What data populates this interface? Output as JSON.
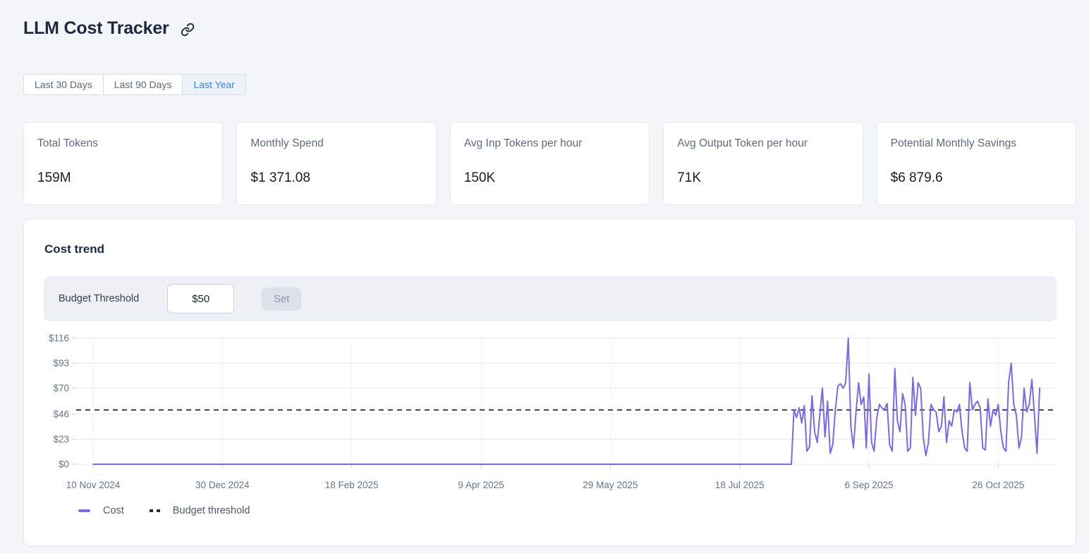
{
  "page": {
    "title": "LLM Cost Tracker"
  },
  "time_range_tabs": [
    {
      "label": "Last 30 Days",
      "selected": false
    },
    {
      "label": "Last 90 Days",
      "selected": false
    },
    {
      "label": "Last Year",
      "selected": true
    }
  ],
  "stat_cards": [
    {
      "label": "Total Tokens",
      "value": "159M"
    },
    {
      "label": "Monthly Spend",
      "value": "$1 371.08"
    },
    {
      "label": "Avg Inp Tokens per hour",
      "value": "150K"
    },
    {
      "label": "Avg Output Token per hour",
      "value": "71K"
    },
    {
      "label": "Potential Monthly Savings",
      "value": "$6 879.6"
    }
  ],
  "cost_trend": {
    "title": "Cost trend",
    "budget_threshold_label": "Budget Threshold",
    "budget_threshold_value": "$50",
    "set_button_label": "Set",
    "legend": [
      {
        "label": "Cost",
        "swatch": "solid",
        "color": "#7b68ee"
      },
      {
        "label": "Budget threshold",
        "swatch": "dashed",
        "color": "#262e3d"
      }
    ]
  },
  "icons": {
    "title_link": "link-icon"
  },
  "colors": {
    "cost_line": "#7b68ee",
    "threshold_line": "#3a4150",
    "grid_line": "#e5e9f0",
    "grid_line_vertical": "#eef1f7",
    "tick_text": "#66748c",
    "tab_active_text": "#3b82f6"
  },
  "chart_data": {
    "type": "line",
    "title": "Cost trend",
    "x_unit": "day",
    "x_range": [
      "10 Nov 2024",
      "11 Nov 2025"
    ],
    "x_tick_labels": [
      "10 Nov 2024",
      "30 Dec 2024",
      "18 Feb 2025",
      "9 Apr 2025",
      "29 May 2025",
      "18 Jul 2025",
      "6 Sep 2025",
      "26 Oct 2025"
    ],
    "x_tick_day_indices": [
      0,
      50,
      100,
      150,
      200,
      250,
      300,
      350
    ],
    "y_ticks": [
      0,
      23,
      46,
      70,
      93,
      116
    ],
    "y_tick_labels": [
      "$0",
      "$23",
      "$46",
      "$70",
      "$93",
      "$116"
    ],
    "ylim": [
      0,
      116
    ],
    "grid": true,
    "legend_position": "bottom-left",
    "series": [
      {
        "name": "Cost",
        "color": "#7b68ee",
        "style": "solid",
        "flat_zero_days": 271,
        "first_active_date": "8 Aug 2025",
        "values_after_flat": [
          50,
          43,
          52,
          38,
          54,
          12,
          16,
          63,
          30,
          20,
          45,
          70,
          25,
          58,
          10,
          18,
          50,
          72,
          74,
          70,
          75,
          116,
          35,
          15,
          48,
          75,
          55,
          62,
          15,
          83,
          20,
          12,
          42,
          55,
          52,
          50,
          56,
          18,
          12,
          88,
          40,
          30,
          65,
          55,
          12,
          15,
          80,
          45,
          75,
          70,
          25,
          8,
          20,
          55,
          50,
          48,
          30,
          35,
          62,
          20,
          40,
          35,
          50,
          48,
          55,
          30,
          15,
          12,
          75,
          50,
          55,
          58,
          52,
          15,
          13,
          60,
          35,
          50,
          45,
          55,
          30,
          15,
          12,
          75,
          93,
          55,
          45,
          15,
          25,
          70,
          48,
          55,
          78,
          45,
          10,
          70
        ]
      },
      {
        "name": "Budget threshold",
        "type": "threshold",
        "value": 50,
        "color": "#3a4150",
        "style": "dashed"
      }
    ]
  }
}
